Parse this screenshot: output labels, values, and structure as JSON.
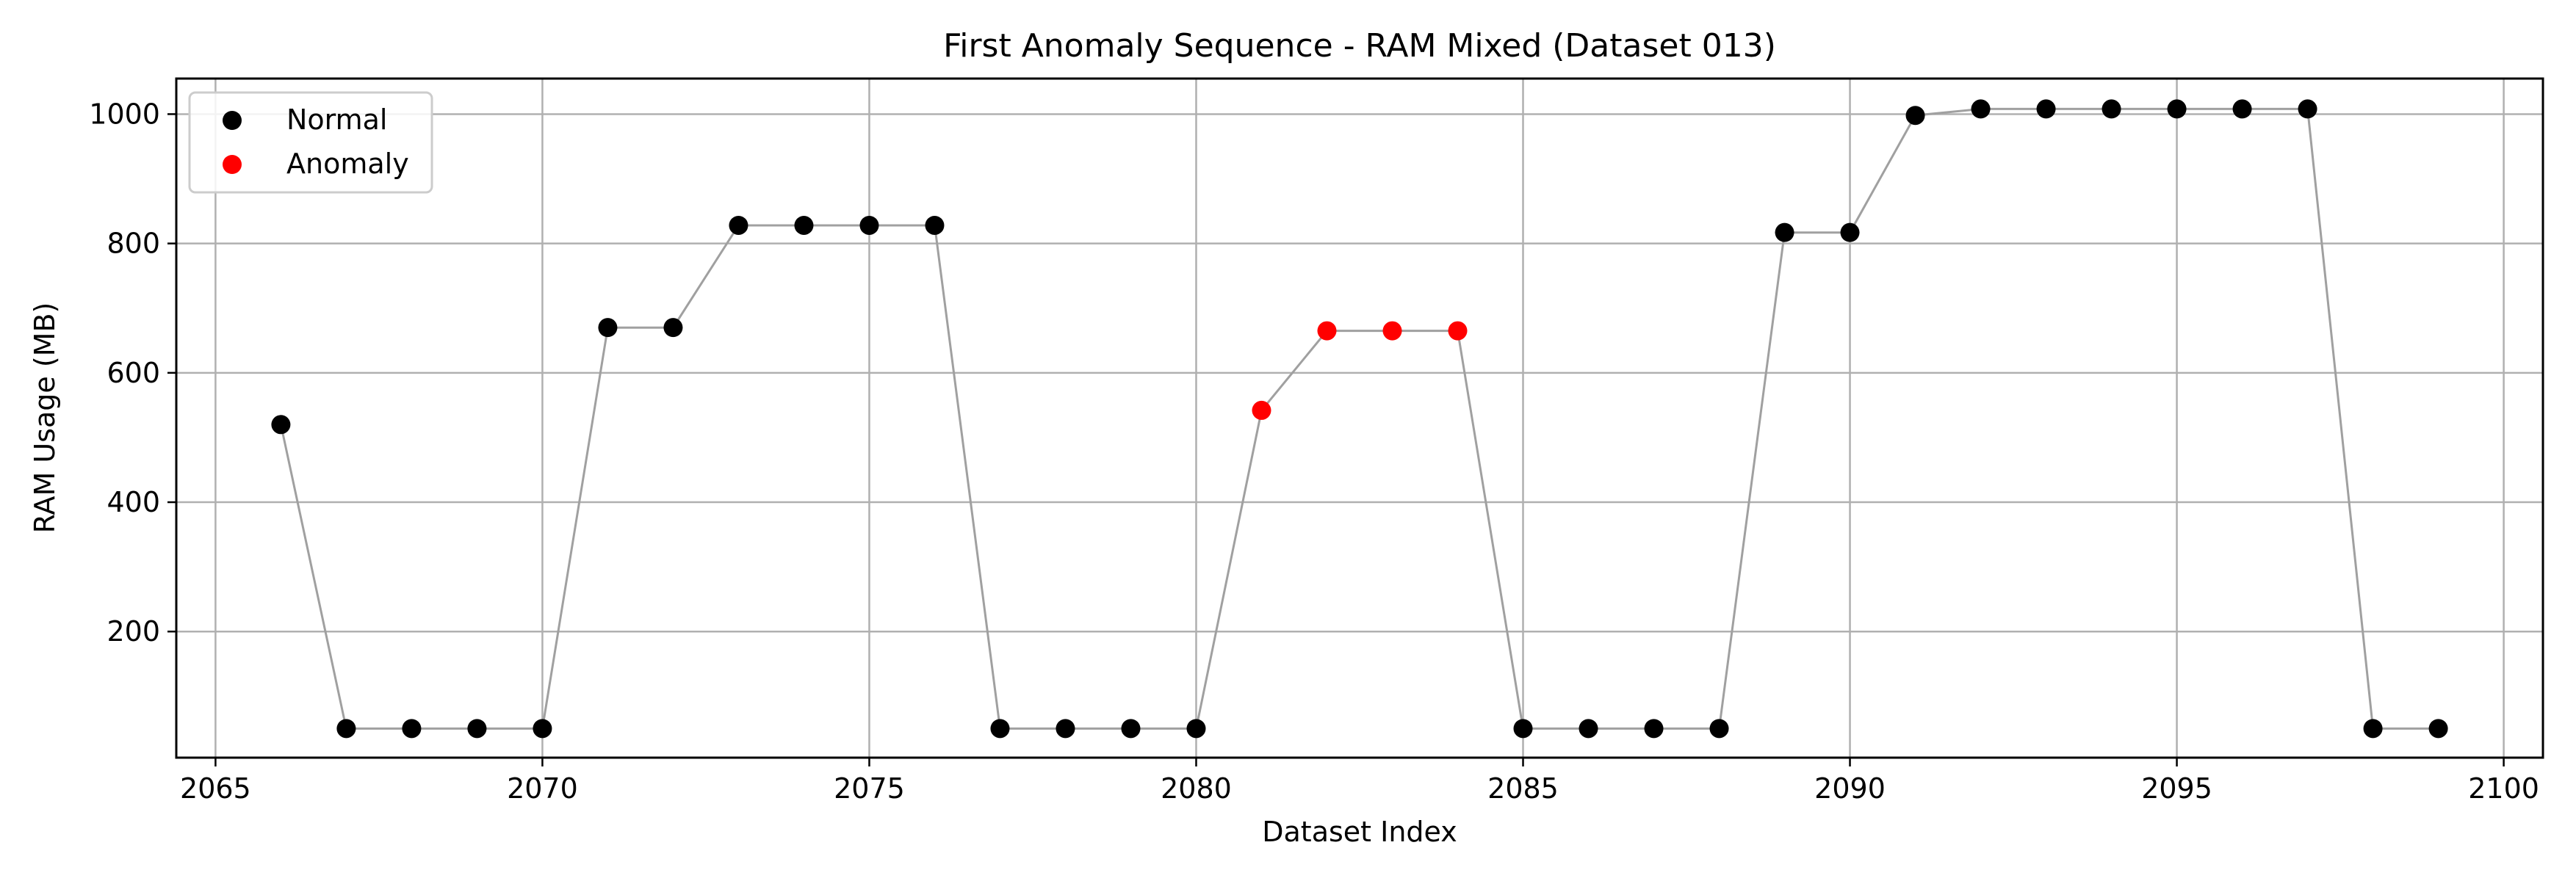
{
  "chart_data": {
    "type": "scatter",
    "title": "First Anomaly Sequence - RAM Mixed (Dataset 013)",
    "xlabel": "Dataset Index",
    "ylabel": "RAM Usage (MB)",
    "xlim": [
      2064.4,
      2100.6
    ],
    "ylim": [
      5,
      1055
    ],
    "x_ticks": [
      2065,
      2070,
      2075,
      2080,
      2085,
      2090,
      2095,
      2100
    ],
    "y_ticks": [
      200,
      400,
      600,
      800,
      1000
    ],
    "grid": true,
    "legend_position": "top-left",
    "connecting_line": {
      "color": "#a0a0a0"
    },
    "x": [
      2066,
      2067,
      2068,
      2069,
      2070,
      2071,
      2072,
      2073,
      2074,
      2075,
      2076,
      2077,
      2078,
      2079,
      2080,
      2081,
      2082,
      2083,
      2084,
      2085,
      2086,
      2087,
      2088,
      2089,
      2090,
      2091,
      2092,
      2093,
      2094,
      2095,
      2096,
      2097,
      2098,
      2099
    ],
    "y": [
      520,
      50,
      50,
      50,
      50,
      670,
      670,
      828,
      828,
      828,
      828,
      50,
      50,
      50,
      50,
      542,
      665,
      665,
      665,
      50,
      50,
      50,
      50,
      817,
      817,
      998,
      1008,
      1008,
      1008,
      1008,
      1008,
      1008,
      50,
      50
    ],
    "series": [
      {
        "name": "Normal",
        "color": "#000000"
      },
      {
        "name": "Anomaly",
        "color": "#ff0000",
        "x": [
          2081,
          2082,
          2083,
          2084
        ]
      }
    ]
  }
}
